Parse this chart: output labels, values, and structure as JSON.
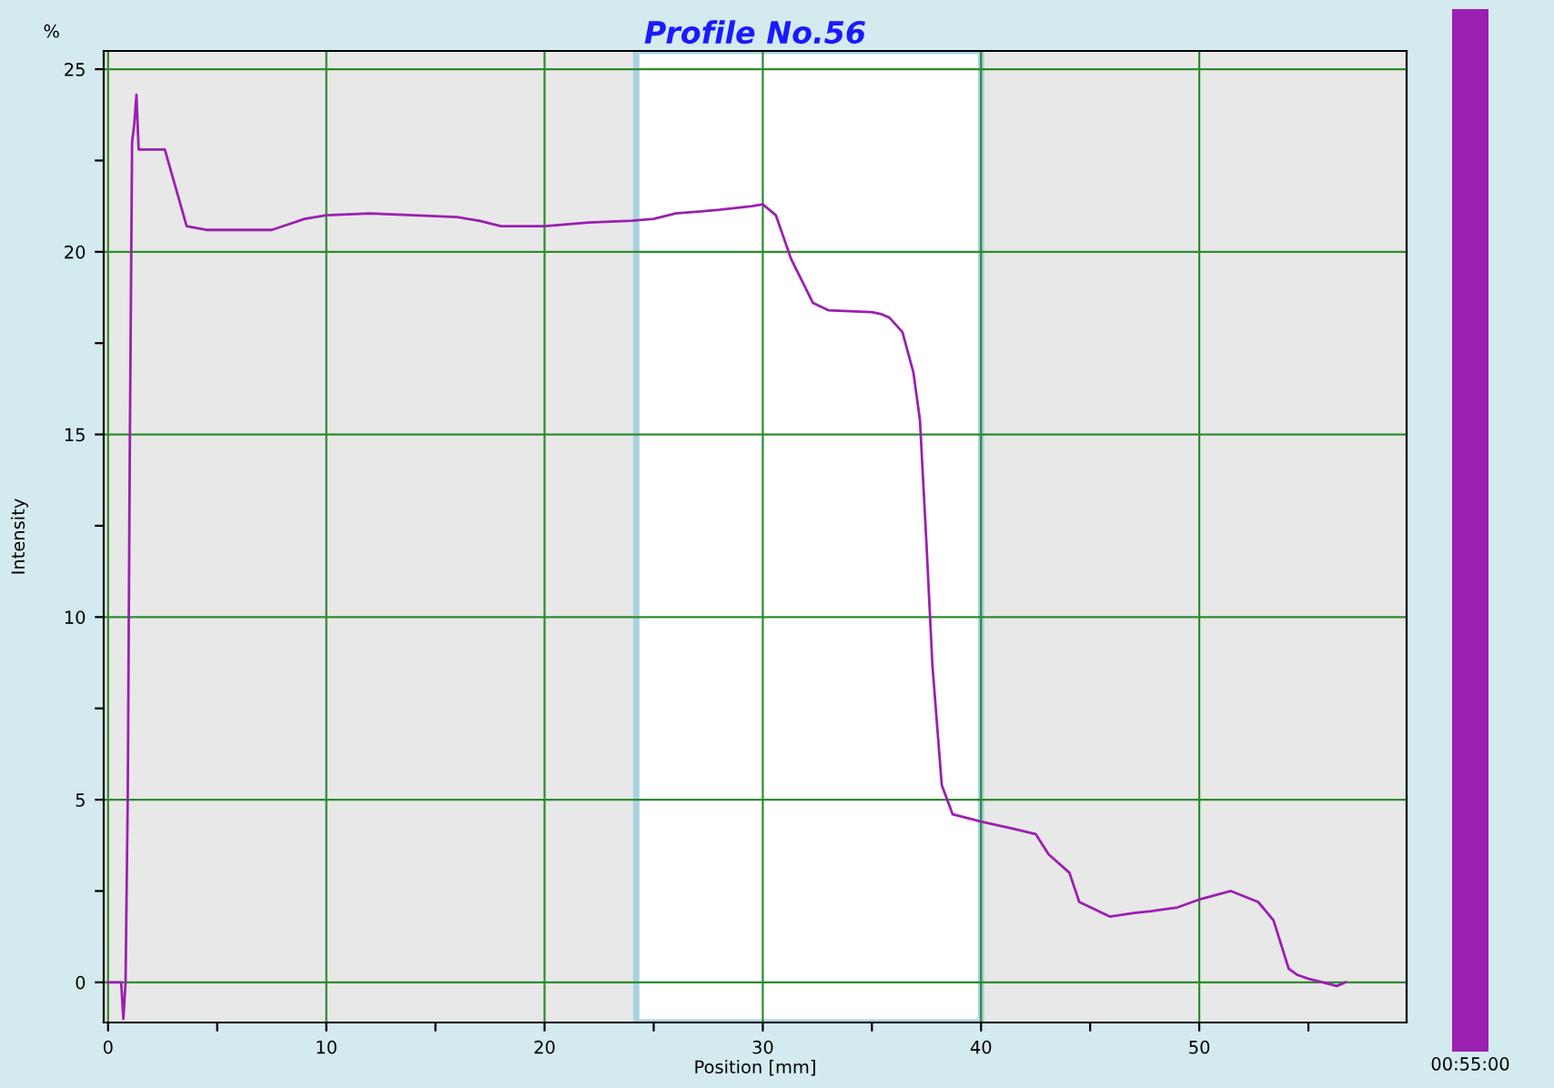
{
  "chart_data": {
    "type": "line",
    "title": "Profile No.56",
    "xlabel": "Position [mm]",
    "ylabel": "Intensity",
    "annotations": [
      "%"
    ],
    "xlim": [
      -0.2,
      59.5
    ],
    "ylim": [
      -1.1,
      25.5
    ],
    "xticks": [
      0,
      {
        "value": 5,
        "label": null
      },
      10,
      {
        "value": 15,
        "label": null
      },
      20,
      {
        "value": 25,
        "label": null
      },
      30,
      {
        "value": 35,
        "label": null
      },
      40,
      {
        "value": 45,
        "label": null
      },
      50,
      {
        "value": 55,
        "label": null
      }
    ],
    "yticks": [
      0,
      {
        "value": 2.5,
        "label": null
      },
      5,
      {
        "value": 7.5,
        "label": null
      },
      10,
      {
        "value": 12.5,
        "label": null
      },
      15,
      {
        "value": 17.5,
        "label": null
      },
      20,
      {
        "value": 22.5,
        "label": null
      },
      25
    ],
    "grid": true,
    "legend": "right",
    "line_style": "solid",
    "marker": "none",
    "bands": [
      {
        "axis": "x",
        "from": 24.2,
        "to": 40,
        "color": "#ffffff"
      }
    ],
    "series": [
      {
        "name": "00:55:00",
        "color": "#9b1fb0",
        "x": [
          0,
          0.6,
          0.7,
          0.8,
          0.9,
          1.0,
          1.1,
          1.2,
          1.3,
          1.4,
          2.6,
          3.6,
          4.5,
          7.5,
          8,
          9,
          10,
          12,
          14,
          16,
          17,
          18,
          20,
          22,
          24,
          25,
          26,
          28,
          29.5,
          30,
          30.6,
          31.3,
          31.8,
          32.3,
          33,
          35,
          35.4,
          35.8,
          36.4,
          36.9,
          37.2,
          37.5,
          37.77,
          38.2,
          38.7,
          40,
          41.5,
          42.5,
          43.1,
          44.05,
          44.5,
          45.9,
          47,
          47.8,
          49,
          50.06,
          51.45,
          52.7,
          53.4,
          54.1,
          54.5,
          55,
          56.3,
          56.7
        ],
        "values": [
          0,
          0,
          -1,
          0,
          5,
          15,
          23,
          23.5,
          24.3,
          22.8,
          22.8,
          20.7,
          20.6,
          20.6,
          20.7,
          20.9,
          21.0,
          21.05,
          21.0,
          20.95,
          20.85,
          20.7,
          20.7,
          20.8,
          20.85,
          20.9,
          21.05,
          21.15,
          21.25,
          21.3,
          21.0,
          19.8,
          19.2,
          18.6,
          18.4,
          18.35,
          18.3,
          18.2,
          17.8,
          16.7,
          15.4,
          12,
          8.7,
          5.4,
          4.6,
          4.4,
          4.2,
          4.06,
          3.5,
          3.0,
          2.2,
          1.8,
          1.9,
          1.95,
          2.05,
          2.28,
          2.5,
          2.2,
          1.7,
          0.37,
          0.2,
          0.1,
          -0.1,
          0
        ]
      }
    ]
  }
}
